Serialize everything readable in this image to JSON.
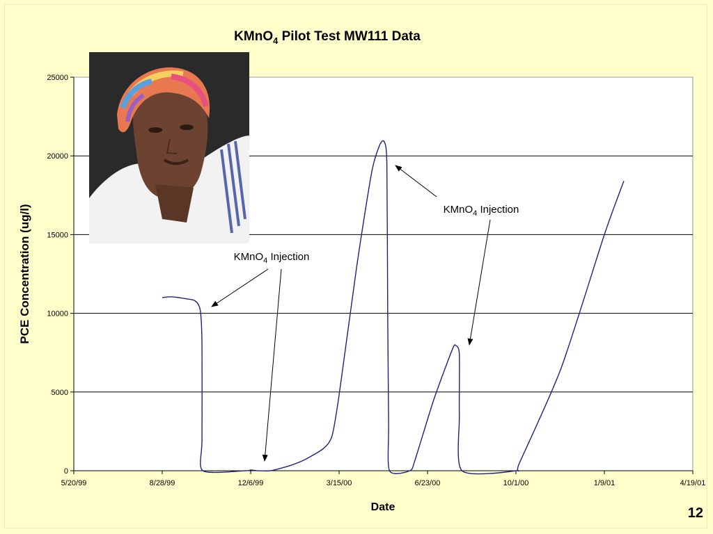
{
  "slide": {
    "page_number": "12"
  },
  "chart_data": {
    "type": "line",
    "title": "KMnO4  Pilot Test MW111 Data",
    "title_main": "KMnO",
    "title_sub": "4",
    "title_rest": "  Pilot Test MW111 Data",
    "xlabel": "Date",
    "ylabel": "PCE Concentration (ug/l)",
    "ylim": [
      0,
      25000
    ],
    "xlim": [
      "1999-05-20",
      "2001-04-19"
    ],
    "y_ticks": [
      0,
      5000,
      10000,
      15000,
      20000,
      25000
    ],
    "x_tick_labels": [
      "5/20/99",
      "8/28/99",
      "12/6/99",
      "3/15/00",
      "6/23/00",
      "10/1/00",
      "1/9/01",
      "4/19/01"
    ],
    "x_tick_dates": [
      "1999-05-20",
      "1999-08-28",
      "1999-12-06",
      "2000-03-15",
      "2000-06-23",
      "2000-10-01",
      "2001-01-09",
      "2001-04-19"
    ],
    "grid": true,
    "series": [
      {
        "color": "#1a237e",
        "points": [
          [
            "1999-08-28",
            11000
          ],
          [
            "1999-09-07",
            11050
          ],
          [
            "1999-09-21",
            10950
          ],
          [
            "1999-10-04",
            10800
          ],
          [
            "1999-10-10",
            10200
          ],
          [
            "1999-10-12",
            8000
          ],
          [
            "1999-10-12",
            2000
          ],
          [
            "1999-10-13",
            0
          ],
          [
            "1999-11-30",
            0
          ],
          [
            "1999-12-06",
            50
          ],
          [
            "1999-12-14",
            0
          ],
          [
            "1999-12-28",
            0
          ],
          [
            "2000-01-18",
            300
          ],
          [
            "2000-02-05",
            700
          ],
          [
            "2000-02-26",
            1400
          ],
          [
            "2000-03-07",
            2200
          ],
          [
            "2000-03-15",
            4800
          ],
          [
            "2000-04-04",
            13000
          ],
          [
            "2000-04-21",
            19000
          ],
          [
            "2000-04-30",
            20700
          ],
          [
            "2000-05-05",
            20900
          ],
          [
            "2000-05-08",
            19500
          ],
          [
            "2000-05-09",
            10000
          ],
          [
            "2000-05-10",
            3000
          ],
          [
            "2000-05-11",
            0
          ],
          [
            "2000-06-03",
            0
          ],
          [
            "2000-06-09",
            700
          ],
          [
            "2000-06-30",
            4500
          ],
          [
            "2000-07-21",
            7700
          ],
          [
            "2000-07-25",
            7950
          ],
          [
            "2000-07-29",
            7400
          ],
          [
            "2000-07-29",
            3500
          ],
          [
            "2000-08-01",
            0
          ],
          [
            "2000-10-01",
            0
          ],
          [
            "2000-10-05",
            500
          ],
          [
            "2000-11-21",
            6500
          ],
          [
            "2001-01-09",
            15000
          ],
          [
            "2001-01-31",
            18400
          ]
        ]
      }
    ],
    "annotations": [
      {
        "text_main": "KMnO",
        "text_sub": "4",
        "text_rest": " Injection",
        "at": [
          "1999-10-10",
          10300
        ]
      },
      {
        "text_main": "KMnO",
        "text_sub": "4",
        "text_rest": " Injection",
        "at": [
          "1999-12-14",
          500
        ]
      },
      {
        "text_main": "KMnO",
        "text_sub": "4",
        "text_rest": " Injection",
        "at": [
          "2000-05-10",
          19400
        ]
      },
      {
        "text_main": "KMnO",
        "text_sub": "4",
        "text_rest": " Injection",
        "at": [
          "2000-07-27",
          7900
        ]
      }
    ]
  }
}
